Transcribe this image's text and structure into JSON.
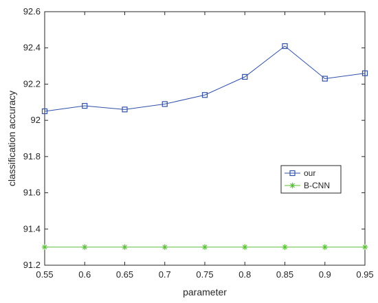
{
  "chart_data": {
    "type": "line",
    "xlabel": "parameter",
    "ylabel": "classification accuracy",
    "x": [
      0.55,
      0.6,
      0.65,
      0.7,
      0.75,
      0.8,
      0.85,
      0.9,
      0.95
    ],
    "xlim": [
      0.55,
      0.95
    ],
    "ylim": [
      91.2,
      92.6
    ],
    "x_ticks": [
      "0.55",
      "0.6",
      "0.65",
      "0.7",
      "0.75",
      "0.8",
      "0.85",
      "0.9",
      "0.95"
    ],
    "y_ticks": [
      "91.2",
      "91.4",
      "91.6",
      "91.8",
      "92",
      "92.2",
      "92.4",
      "92.6"
    ],
    "grid": false,
    "legend_position": "right",
    "series": [
      {
        "name": "our",
        "marker": "square",
        "color": "#2f4fa8",
        "values": [
          92.05,
          92.08,
          92.06,
          92.09,
          92.14,
          92.24,
          92.41,
          92.23,
          92.26
        ]
      },
      {
        "name": "B-CNN",
        "marker": "asterisk",
        "color": "#5cc13a",
        "values": [
          91.3,
          91.3,
          91.3,
          91.3,
          91.3,
          91.3,
          91.3,
          91.3,
          91.3
        ]
      }
    ]
  }
}
